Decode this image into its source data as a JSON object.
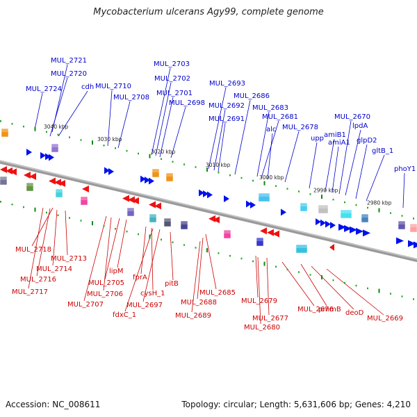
{
  "title": "Mycobacterium ulcerans Agy99, complete genome",
  "footer": {
    "accession": "Accession: NC_008611",
    "summary": "Topology: circular; Length: 5,631,606 bp; Genes: 4,210"
  },
  "colors": {
    "forward_label": "#0000cc",
    "reverse_label": "#cc0000",
    "forward_arrow": "#0011ee",
    "reverse_arrow": "#ee1111",
    "backbone": "#777777",
    "tick": "#22aa22"
  },
  "scale_labels": [
    "3040 kbp",
    "3030 kbp",
    "3020 kbp",
    "3010 kbp",
    "3000 kbp",
    "2990 kbp",
    "2980 kbp"
  ],
  "forward_genes": [
    "MUL_2721",
    "MUL_2720",
    "MUL_2724",
    "cdh",
    "MUL_2710",
    "MUL_2708",
    "MUL_2703",
    "MUL_2702",
    "MUL_2701",
    "MUL_2698",
    "MUL_2693",
    "MUL_2692",
    "MUL_2691",
    "MUL_2686",
    "MUL_2683",
    "MUL_2681",
    "alc",
    "MUL_2678",
    "upp",
    "amiB1",
    "amiA1",
    "MUL_2670",
    "lpdA",
    "glpD2",
    "gltB_1",
    "phoY1"
  ],
  "reverse_genes": [
    "MUL_2718",
    "MUL_2713",
    "MUL_2714",
    "MUL_2716",
    "MUL_2717",
    "lipM",
    "MUL_2705",
    "MUL_2706",
    "MUL_2707",
    "fprA",
    "cysH_1",
    "MUL_2697",
    "fdxC_1",
    "pitB",
    "MUL_2685",
    "MUL_2688",
    "MUL_2689",
    "MUL_2679",
    "MUL_2677",
    "MUL_2680",
    "MUL_2676",
    "pmmB",
    "deoD",
    "MUL_2669"
  ]
}
